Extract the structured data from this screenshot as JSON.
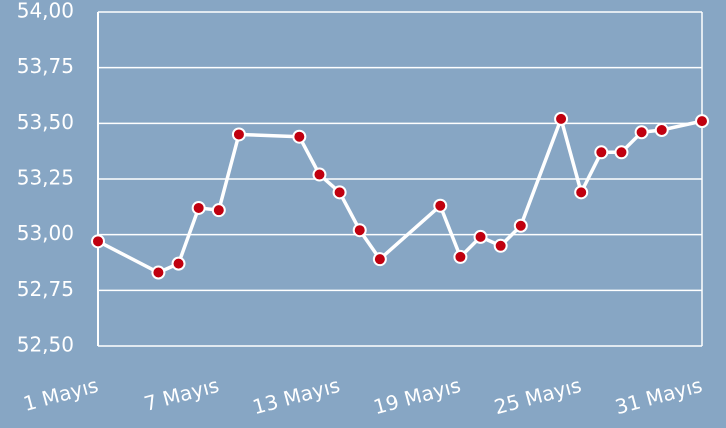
{
  "chart_data": {
    "type": "line",
    "x": [
      1,
      4,
      5,
      6,
      7,
      8,
      11,
      12,
      13,
      14,
      15,
      18,
      19,
      20,
      21,
      22,
      24,
      25,
      26,
      27,
      28,
      29,
      31
    ],
    "series": [
      {
        "color": "#c0000f",
        "values": [
          52.97,
          52.83,
          52.87,
          53.12,
          53.11,
          53.45,
          53.44,
          53.27,
          53.19,
          53.02,
          52.89,
          53.13,
          52.9,
          52.99,
          52.95,
          53.04,
          53.52,
          53.19,
          53.37,
          53.37,
          53.46,
          53.47,
          53.51
        ]
      }
    ],
    "xlim": [
      1,
      31
    ],
    "xticks": [
      {
        "value": 1,
        "label": "1 Mayıs"
      },
      {
        "value": 7,
        "label": "7 Mayıs"
      },
      {
        "value": 13,
        "label": "13 Mayıs"
      },
      {
        "value": 19,
        "label": "19 Mayıs"
      },
      {
        "value": 25,
        "label": "25 Mayıs"
      },
      {
        "value": 31,
        "label": "31 Mayıs"
      }
    ],
    "ylim": [
      52.5,
      54
    ],
    "yticks": [
      {
        "value": 52.5,
        "label": "52,50"
      },
      {
        "value": 52.75,
        "label": "52,75"
      },
      {
        "value": 53,
        "label": "53,00"
      },
      {
        "value": 53.25,
        "label": "53,25"
      },
      {
        "value": 53.5,
        "label": "53,50"
      },
      {
        "value": 53.75,
        "label": "53,75"
      },
      {
        "value": 54,
        "label": "54,00"
      }
    ],
    "grid": true
  }
}
